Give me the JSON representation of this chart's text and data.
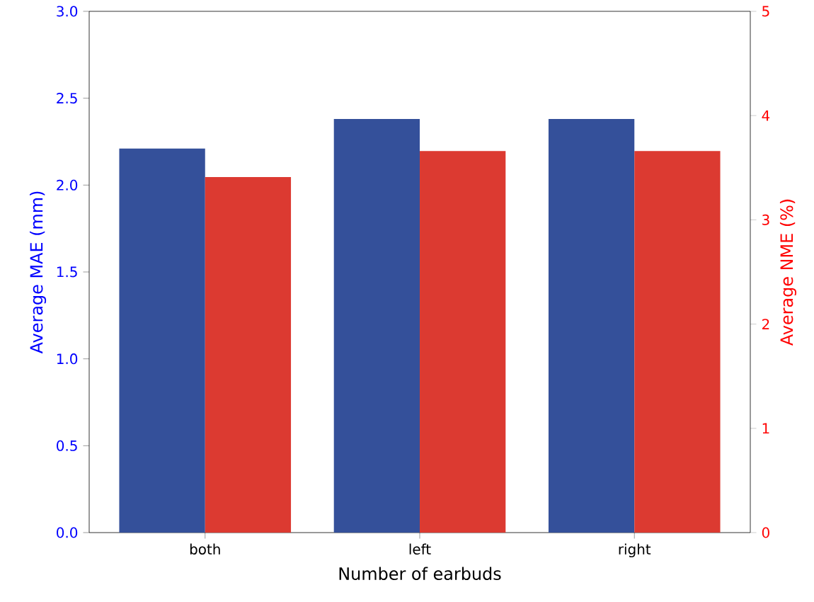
{
  "chart_data": {
    "type": "bar",
    "xlabel": "Number of earbuds",
    "ylabel": "Average MAE (mm)",
    "y2label": "Average NME (%)",
    "categories": [
      "both",
      "left",
      "right"
    ],
    "series": [
      {
        "color": "#34509a",
        "values": [
          2.21,
          2.38,
          2.38
        ]
      },
      {
        "color": "#dc3a31",
        "values": [
          3.41,
          3.66,
          3.66
        ],
        "axis": "y2"
      }
    ],
    "ylim": [
      0,
      3
    ],
    "yticks": [
      {
        "value": 0,
        "label": "0.0"
      },
      {
        "value": 0.5,
        "label": "0.5"
      },
      {
        "value": 1,
        "label": "1.0"
      },
      {
        "value": 1.5,
        "label": "1.5"
      },
      {
        "value": 2,
        "label": "2.0"
      },
      {
        "value": 2.5,
        "label": "2.5"
      },
      {
        "value": 3,
        "label": "3.0"
      }
    ],
    "y2lim": [
      0,
      5
    ],
    "y2ticks": [
      0,
      1,
      2,
      3,
      4,
      5
    ]
  }
}
